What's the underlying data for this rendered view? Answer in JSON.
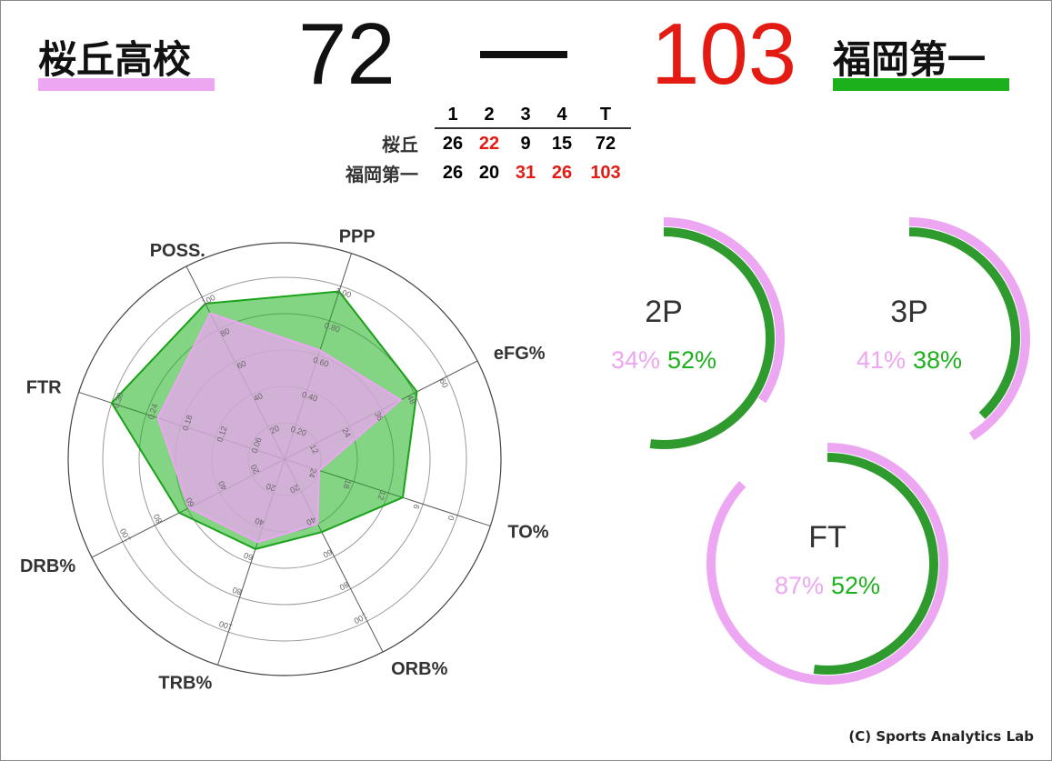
{
  "header": {
    "home_team": "桜丘高校",
    "away_team": "福岡第一",
    "home_score": "72",
    "away_score": "103",
    "home_color": "#eca6f2",
    "away_color": "#1db01d",
    "away_score_color": "#e41b13",
    "dash": "—"
  },
  "quarter_table": {
    "headers": [
      "1",
      "2",
      "3",
      "4",
      "T"
    ],
    "rows": [
      {
        "label": "桜丘",
        "values": [
          "26",
          "22",
          "9",
          "15",
          "72"
        ],
        "highlight": [
          false,
          true,
          false,
          false,
          false
        ]
      },
      {
        "label": "福岡第一",
        "values": [
          "26",
          "20",
          "31",
          "26",
          "103"
        ],
        "highlight": [
          false,
          false,
          true,
          true,
          true
        ]
      }
    ]
  },
  "chart_data": [
    {
      "type": "radar",
      "title": "",
      "axes": [
        {
          "label": "PPP",
          "max": 1.0,
          "ticks": [
            "0.20",
            "0.40",
            "0.60",
            "0.80",
            "1.00"
          ]
        },
        {
          "label": "eFG%",
          "max": 60,
          "ticks": [
            "12",
            "24",
            "36",
            "48",
            "60"
          ]
        },
        {
          "label": "TO%",
          "max": 30,
          "reverse": true,
          "ticks": [
            "24",
            "18",
            "12",
            "6",
            "0"
          ]
        },
        {
          "label": "ORB%",
          "max": 100,
          "ticks": [
            "20",
            "40",
            "60",
            "80",
            "100"
          ]
        },
        {
          "label": "TRB%",
          "max": 100,
          "ticks": [
            "20",
            "40",
            "60",
            "80",
            "100"
          ]
        },
        {
          "label": "DRB%",
          "max": 100,
          "ticks": [
            "20",
            "40",
            "60",
            "80",
            "100"
          ]
        },
        {
          "label": "FTR",
          "max": 0.3,
          "ticks": [
            "0.06",
            "0.12",
            "0.18",
            "0.24",
            "0.30"
          ]
        },
        {
          "label": "POSS.",
          "max": 100,
          "ticks": [
            "20",
            "40",
            "60",
            "80",
            "100"
          ]
        }
      ],
      "series": [
        {
          "team": "away",
          "values": [
            0.97,
            49,
            9.5,
            45,
            52,
            65,
            0.3,
            96
          ]
        },
        {
          "team": "home",
          "values": [
            0.63,
            43,
            24,
            40,
            48,
            59,
            0.22,
            90
          ]
        }
      ]
    },
    {
      "type": "ring",
      "label": "2P",
      "home_pct": 34,
      "away_pct": 52,
      "home_text": "34%",
      "away_text": "52%"
    },
    {
      "type": "ring",
      "label": "3P",
      "home_pct": 41,
      "away_pct": 38,
      "home_text": "41%",
      "away_text": "38%"
    },
    {
      "type": "ring",
      "label": "FT",
      "home_pct": 87,
      "away_pct": 52,
      "home_text": "87%",
      "away_text": "52%"
    }
  ],
  "footer": {
    "credit": "(C) Sports Analytics Lab"
  }
}
